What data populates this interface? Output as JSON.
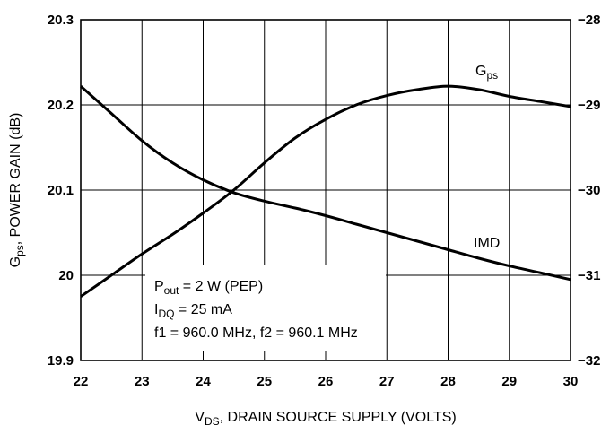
{
  "chart_data": {
    "type": "line",
    "xlabel": {
      "main": "V",
      "sub": "DS",
      "rest": ", DRAIN SOURCE SUPPLY (VOLTS)"
    },
    "ylabel": {
      "main": "G",
      "sub": "ps",
      "rest": ",  POWER GAIN (dB)"
    },
    "xlim": [
      22,
      30
    ],
    "ylim": [
      19.9,
      20.3
    ],
    "y2lim": [
      -32,
      -28
    ],
    "x_ticks": [
      "22",
      "23",
      "24",
      "25",
      "26",
      "27",
      "28",
      "29",
      "30"
    ],
    "y_ticks": [
      "19.9",
      "20",
      "20.1",
      "20.2",
      "20.3"
    ],
    "y2_ticks": [
      "−32",
      "−31",
      "−30",
      "−29",
      "−28"
    ],
    "grid": true,
    "series": [
      {
        "name": "G",
        "name_sub": "ps",
        "axis": "left",
        "x": [
          22,
          22.5,
          23,
          23.5,
          24,
          24.5,
          25,
          25.5,
          26,
          26.5,
          27,
          27.5,
          28,
          28.5,
          29,
          29.5,
          30
        ],
        "y": [
          19.975,
          20.0,
          20.025,
          20.048,
          20.073,
          20.1,
          20.132,
          20.161,
          20.183,
          20.2,
          20.211,
          20.218,
          20.222,
          20.218,
          20.21,
          20.204,
          20.198
        ]
      },
      {
        "name": "IMD",
        "axis": "right",
        "x": [
          22,
          22.5,
          23,
          23.5,
          24,
          24.5,
          25,
          25.5,
          26,
          26.5,
          27,
          27.5,
          28,
          28.5,
          29,
          29.5,
          30
        ],
        "y": [
          -28.78,
          -29.1,
          -29.42,
          -29.68,
          -29.88,
          -30.03,
          -30.13,
          -30.21,
          -30.3,
          -30.4,
          -30.5,
          -30.6,
          -30.7,
          -30.8,
          -30.89,
          -30.97,
          -31.05
        ]
      }
    ],
    "annotation": [
      {
        "main": "P",
        "sub": "out",
        "rest": " = 2 W (PEP)"
      },
      {
        "main": "I",
        "sub": "DQ",
        "rest": " = 25 mA"
      },
      {
        "main": "f1 = 960.0 MHz, f2 = 960.1 MHz",
        "sub": "",
        "rest": ""
      }
    ]
  }
}
